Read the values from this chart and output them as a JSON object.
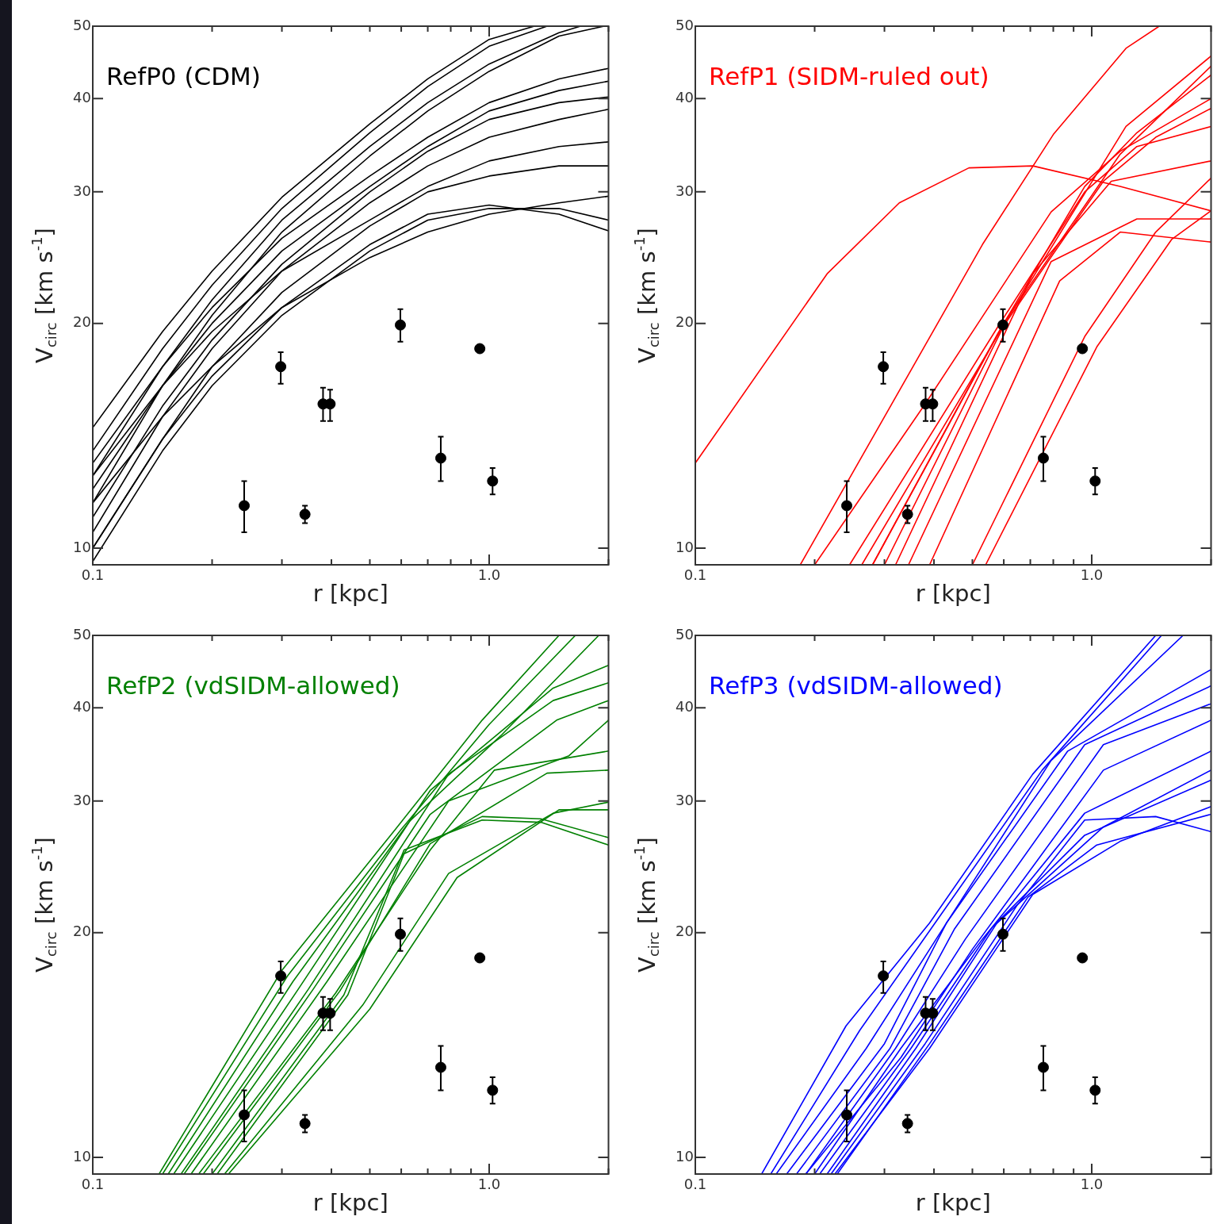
{
  "chart_data": [
    {
      "type": "line",
      "title": "RefP0 (CDM)",
      "xlabel": "r [kpc]",
      "ylabel": "V$_{circ}$ [km s$^{-1}$]",
      "log": "xy",
      "grid": false,
      "xlim": [
        0.1,
        2.0
      ],
      "ylim": [
        9.5,
        50
      ],
      "xticks": [
        {
          "value": 0.1,
          "label": "0.1"
        },
        {
          "value": 0.2,
          "label": null
        },
        {
          "value": 0.3,
          "label": null
        },
        {
          "value": 0.4,
          "label": null
        },
        {
          "value": 0.5,
          "label": null
        },
        {
          "value": 0.6,
          "label": null
        },
        {
          "value": 0.7,
          "label": null
        },
        {
          "value": 0.8,
          "label": null
        },
        {
          "value": 0.9,
          "label": null
        },
        {
          "value": 1,
          "label": "1.0"
        },
        {
          "value": 2,
          "label": null
        }
      ],
      "yticks": [
        10,
        20,
        30,
        40,
        50
      ],
      "series": [
        {
          "color": "#000000",
          "x": [
            0.1,
            0.15,
            0.2,
            0.3,
            0.5,
            0.7,
            1.0,
            1.3
          ],
          "values": [
            14.5,
            19.5,
            23.5,
            29.5,
            37,
            42.5,
            48,
            50
          ]
        },
        {
          "color": "#000000",
          "x": [
            0.1,
            0.15,
            0.2,
            0.3,
            0.5,
            0.7,
            1.0,
            1.4
          ],
          "values": [
            13.5,
            18.5,
            22.5,
            28.5,
            36,
            41.5,
            47,
            50
          ]
        },
        {
          "color": "#000000",
          "x": [
            0.1,
            0.15,
            0.2,
            0.3,
            0.5,
            0.7,
            1.0,
            1.5,
            1.7
          ],
          "values": [
            12.5,
            17.5,
            21.5,
            27.5,
            34.5,
            39.5,
            44.5,
            49,
            50
          ]
        },
        {
          "color": "#000000",
          "x": [
            0.1,
            0.15,
            0.2,
            0.3,
            0.5,
            0.7,
            1.0,
            1.5,
            1.95
          ],
          "values": [
            11.5,
            16.5,
            20.5,
            26.5,
            33.5,
            38.5,
            43.5,
            48.5,
            50
          ]
        },
        {
          "color": "#000000",
          "x": [
            0.1,
            0.15,
            0.2,
            0.3,
            0.5,
            0.7,
            1.0,
            1.5,
            2.0
          ],
          "values": [
            13,
            17.5,
            21,
            26,
            31.5,
            35.5,
            39.5,
            42.5,
            43.9
          ]
        },
        {
          "color": "#000000",
          "x": [
            0.1,
            0.15,
            0.2,
            0.3,
            0.5,
            0.7,
            1.0,
            1.5,
            2.0
          ],
          "values": [
            12,
            16.5,
            20,
            25,
            30.5,
            34.5,
            38.5,
            41,
            42.2
          ]
        },
        {
          "color": "#000000",
          "x": [
            0.1,
            0.15,
            0.2,
            0.3,
            0.5,
            0.7,
            1.0,
            1.5,
            2.0
          ],
          "values": [
            11,
            15.5,
            19,
            24,
            30,
            34,
            37.5,
            39.5,
            40.2
          ]
        },
        {
          "color": "#000000",
          "x": [
            0.1,
            0.15,
            0.2,
            0.3,
            0.5,
            0.7,
            1.0,
            1.5,
            2.0
          ],
          "values": [
            10.5,
            15,
            18.5,
            23.5,
            29,
            32.5,
            35.5,
            37.5,
            38.7
          ]
        },
        {
          "color": "#000000",
          "x": [
            0.1,
            0.15,
            0.2,
            0.3,
            0.5,
            0.7,
            1.0,
            1.5,
            2.0
          ],
          "values": [
            12.5,
            16.5,
            19.5,
            23.5,
            27.5,
            30.5,
            33,
            34.5,
            35.0
          ]
        },
        {
          "color": "#000000",
          "x": [
            0.1,
            0.15,
            0.2,
            0.3,
            0.5,
            0.7,
            1.0,
            1.5,
            2.0
          ],
          "values": [
            10,
            14,
            17.5,
            22,
            27,
            30,
            31.5,
            32.5,
            32.5
          ]
        },
        {
          "color": "#000000",
          "x": [
            0.1,
            0.15,
            0.2,
            0.3,
            0.5,
            0.7,
            1.0,
            1.5,
            2.0
          ],
          "values": [
            11.5,
            15,
            17.5,
            21,
            24.5,
            26.5,
            28,
            29,
            29.6
          ]
        },
        {
          "color": "#000000",
          "x": [
            0.1,
            0.15,
            0.2,
            0.3,
            0.5,
            0.7,
            1.0,
            1.5,
            2.0
          ],
          "values": [
            10,
            14,
            17,
            21,
            25.5,
            28,
            28.8,
            28,
            26.6
          ]
        },
        {
          "color": "#000000",
          "x": [
            0.1,
            0.15,
            0.2,
            0.3,
            0.5,
            0.7,
            1.0,
            1.5,
            2.0
          ],
          "values": [
            9.6,
            13.5,
            16.5,
            20.5,
            25,
            27.5,
            28.5,
            28.5,
            27.5
          ]
        },
        {
          "type": "scatter",
          "marker": "circle",
          "color": "#000000",
          "x": [
            0.241,
            0.298,
            0.343,
            0.381,
            0.397,
            0.597,
            0.755,
            0.947,
            1.02
          ],
          "values": [
            11.4,
            17.5,
            11.1,
            15.6,
            15.6,
            19.9,
            13.2,
            18.5,
            12.3
          ],
          "errors": [
            [
              10.5,
              12.3
            ],
            [
              16.6,
              18.3
            ],
            [
              10.8,
              11.4
            ],
            [
              14.8,
              16.4
            ],
            [
              14.8,
              16.3
            ],
            [
              18.9,
              20.9
            ],
            [
              12.3,
              14.1
            ],
            [
              18.3,
              18.7
            ],
            [
              11.8,
              12.8
            ]
          ]
        }
      ]
    },
    {
      "type": "line",
      "title": "RefP1 (SIDM-ruled out)",
      "xlabel": "r [kpc]",
      "ylabel": "V$_{circ}$ [km s$^{-1}$]",
      "log": "xy",
      "grid": false,
      "xlim": [
        0.1,
        2.0
      ],
      "ylim": [
        9.5,
        50
      ],
      "xticks": [
        {
          "value": 0.1,
          "label": "0.1"
        },
        {
          "value": 0.2,
          "label": null
        },
        {
          "value": 0.3,
          "label": null
        },
        {
          "value": 0.4,
          "label": null
        },
        {
          "value": 0.5,
          "label": null
        },
        {
          "value": 0.6,
          "label": null
        },
        {
          "value": 0.7,
          "label": null
        },
        {
          "value": 0.8,
          "label": null
        },
        {
          "value": 0.9,
          "label": null
        },
        {
          "value": 1,
          "label": "1.0"
        },
        {
          "value": 2,
          "label": null
        }
      ],
      "yticks": [
        10,
        20,
        30,
        40,
        50
      ],
      "series": [
        {
          "color": "#ff0000",
          "x": [
            0.1,
            0.215,
            0.327,
            0.49,
            0.71,
            1.18,
            2.0
          ],
          "values": [
            13,
            23.3,
            29,
            32.3,
            32.5,
            30.5,
            28.3
          ]
        },
        {
          "color": "#ff0000",
          "x": [
            0.184,
            0.53,
            0.8,
            1.22,
            1.48
          ],
          "values": [
            9.5,
            25.5,
            35.8,
            46.7,
            50
          ]
        },
        {
          "color": "#ff0000",
          "x": [
            0.2,
            0.38,
            0.79,
            1.18,
            2.0
          ],
          "values": [
            9.5,
            15.6,
            28.2,
            34,
            40
          ]
        },
        {
          "color": "#ff0000",
          "x": [
            0.245,
            0.58,
            0.96,
            1.3,
            2.0
          ],
          "values": [
            9.5,
            19.8,
            30,
            34.5,
            36.7
          ]
        },
        {
          "color": "#ff0000",
          "x": [
            0.263,
            0.59,
            1.07,
            1.45,
            2.0
          ],
          "values": [
            9.5,
            19.6,
            31,
            35.5,
            38.8
          ]
        },
        {
          "color": "#ff0000",
          "x": [
            0.28,
            0.6,
            1.18,
            2.0
          ],
          "values": [
            9.5,
            20,
            33.7,
            44.2
          ]
        },
        {
          "color": "#ff0000",
          "x": [
            0.3,
            0.61,
            1.22,
            2.0
          ],
          "values": [
            9.5,
            20.2,
            36.7,
            45.6
          ]
        },
        {
          "color": "#ff0000",
          "x": [
            0.32,
            0.71,
            1.12,
            2.0
          ],
          "values": [
            9.5,
            23.3,
            31,
            33
          ]
        },
        {
          "color": "#ff0000",
          "x": [
            0.345,
            0.79,
            1.3,
            2.0
          ],
          "values": [
            9.5,
            24.2,
            27.6,
            27.6
          ]
        },
        {
          "color": "#ff0000",
          "x": [
            0.39,
            0.83,
            1.18,
            2.0
          ],
          "values": [
            9.5,
            22.8,
            26.5,
            25.7
          ]
        },
        {
          "color": "#ff0000",
          "x": [
            0.5,
            0.96,
            1.45,
            2.0
          ],
          "values": [
            9.5,
            19.2,
            26.5,
            31.3
          ]
        },
        {
          "color": "#ff0000",
          "x": [
            0.54,
            1.03,
            1.59,
            2.0
          ],
          "values": [
            9.5,
            18.6,
            25.9,
            28.3
          ]
        },
        {
          "color": "#ff0000",
          "x": [
            0.28,
            0.58,
            0.96,
            1.3,
            2.0
          ],
          "values": [
            9.5,
            19.4,
            30.5,
            36,
            43
          ]
        },
        {
          "type": "scatter",
          "marker": "circle",
          "color": "#000000",
          "x": [
            0.241,
            0.298,
            0.343,
            0.381,
            0.397,
            0.597,
            0.755,
            0.947,
            1.02
          ],
          "values": [
            11.4,
            17.5,
            11.1,
            15.6,
            15.6,
            19.9,
            13.2,
            18.5,
            12.3
          ],
          "errors": [
            [
              10.5,
              12.3
            ],
            [
              16.6,
              18.3
            ],
            [
              10.8,
              11.4
            ],
            [
              14.8,
              16.4
            ],
            [
              14.8,
              16.3
            ],
            [
              18.9,
              20.9
            ],
            [
              12.3,
              14.1
            ],
            [
              18.3,
              18.7
            ],
            [
              11.8,
              12.8
            ]
          ]
        }
      ]
    },
    {
      "type": "line",
      "title": "RefP2 (vdSIDM-allowed)",
      "xlabel": "r [kpc]",
      "ylabel": "V$_{circ}$ [km s$^{-1}$]",
      "log": "xy",
      "grid": false,
      "xlim": [
        0.1,
        2.0
      ],
      "ylim": [
        9.5,
        50
      ],
      "xticks": [
        {
          "value": 0.1,
          "label": "0.1"
        },
        {
          "value": 0.2,
          "label": null
        },
        {
          "value": 0.3,
          "label": null
        },
        {
          "value": 0.4,
          "label": null
        },
        {
          "value": 0.5,
          "label": null
        },
        {
          "value": 0.6,
          "label": null
        },
        {
          "value": 0.7,
          "label": null
        },
        {
          "value": 0.8,
          "label": null
        },
        {
          "value": 0.9,
          "label": null
        },
        {
          "value": 1,
          "label": "1.0"
        },
        {
          "value": 2,
          "label": null
        }
      ],
      "yticks": [
        10,
        20,
        30,
        40,
        50
      ],
      "series": [
        {
          "color": "#008000",
          "x": [
            0.147,
            0.3,
            0.58,
            0.96,
            1.5
          ],
          "values": [
            9.5,
            17.8,
            27.5,
            38.5,
            50
          ]
        },
        {
          "color": "#008000",
          "x": [
            0.15,
            0.31,
            0.6,
            1.0,
            1.65
          ],
          "values": [
            9.5,
            17.5,
            27.5,
            38,
            50
          ]
        },
        {
          "color": "#008000",
          "x": [
            0.155,
            0.32,
            0.63,
            1.07,
            1.89
          ],
          "values": [
            9.5,
            17.2,
            28.2,
            36.7,
            50
          ]
        },
        {
          "color": "#008000",
          "x": [
            0.16,
            0.33,
            0.71,
            1.45,
            2.0
          ],
          "values": [
            9.5,
            16.8,
            31,
            42.5,
            45.6
          ]
        },
        {
          "color": "#008000",
          "x": [
            0.167,
            0.35,
            0.79,
            1.45,
            2.0
          ],
          "values": [
            9.5,
            16.8,
            32.6,
            40.9,
            43.2
          ]
        },
        {
          "color": "#008000",
          "x": [
            0.17,
            0.36,
            0.71,
            1.48,
            2.0
          ],
          "values": [
            9.5,
            16.8,
            28.8,
            38.5,
            40.9
          ]
        },
        {
          "color": "#008000",
          "x": [
            0.177,
            0.39,
            0.79,
            1.59,
            2.0
          ],
          "values": [
            9.5,
            17.2,
            30,
            34.5,
            38.5
          ]
        },
        {
          "color": "#008000",
          "x": [
            0.185,
            0.41,
            0.71,
            1.03,
            2.0
          ],
          "values": [
            9.5,
            16.6,
            25.8,
            33,
            35
          ]
        },
        {
          "color": "#008000",
          "x": [
            0.19,
            0.42,
            0.71,
            1.4,
            2.0
          ],
          "values": [
            9.5,
            16.7,
            26.3,
            32.7,
            33
          ]
        },
        {
          "color": "#008000",
          "x": [
            0.2,
            0.43,
            0.61,
            0.96,
            1.35,
            2.0
          ],
          "values": [
            9.5,
            16.5,
            25.8,
            28.3,
            28.1,
            26.2
          ]
        },
        {
          "color": "#008000",
          "x": [
            0.206,
            0.44,
            0.61,
            0.96,
            1.35,
            2.0
          ],
          "values": [
            9.5,
            16.5,
            25.5,
            28.6,
            28.4,
            26.8
          ]
        },
        {
          "color": "#008000",
          "x": [
            0.215,
            0.48,
            0.79,
            1.45,
            2.0
          ],
          "values": [
            9.5,
            16,
            24,
            28.9,
            29.9
          ]
        },
        {
          "color": "#008000",
          "x": [
            0.22,
            0.5,
            0.83,
            1.5,
            2.0
          ],
          "values": [
            9.5,
            15.8,
            23.7,
            29.2,
            29.2
          ]
        },
        {
          "type": "scatter",
          "marker": "circle",
          "color": "#000000",
          "x": [
            0.241,
            0.298,
            0.343,
            0.381,
            0.397,
            0.597,
            0.755,
            0.947,
            1.02
          ],
          "values": [
            11.4,
            17.5,
            11.1,
            15.6,
            15.6,
            19.9,
            13.2,
            18.5,
            12.3
          ],
          "errors": [
            [
              10.5,
              12.3
            ],
            [
              16.6,
              18.3
            ],
            [
              10.8,
              11.4
            ],
            [
              14.8,
              16.4
            ],
            [
              14.8,
              16.3
            ],
            [
              18.9,
              20.9
            ],
            [
              12.3,
              14.1
            ],
            [
              18.3,
              18.7
            ],
            [
              11.8,
              12.8
            ]
          ]
        }
      ]
    },
    {
      "type": "line",
      "title": "RefP3 (vdSIDM-allowed)",
      "xlabel": "r [kpc]",
      "ylabel": "V$_{circ}$ [km s$^{-1}$]",
      "log": "xy",
      "grid": false,
      "xlim": [
        0.1,
        2.0
      ],
      "ylim": [
        9.5,
        50
      ],
      "xticks": [
        {
          "value": 0.1,
          "label": "0.1"
        },
        {
          "value": 0.2,
          "label": null
        },
        {
          "value": 0.3,
          "label": null
        },
        {
          "value": 0.4,
          "label": null
        },
        {
          "value": 0.5,
          "label": null
        },
        {
          "value": 0.6,
          "label": null
        },
        {
          "value": 0.7,
          "label": null
        },
        {
          "value": 0.8,
          "label": null
        },
        {
          "value": 0.9,
          "label": null
        },
        {
          "value": 1,
          "label": "1.0"
        },
        {
          "value": 2,
          "label": null
        }
      ],
      "yticks": [
        10,
        20,
        30,
        40,
        50
      ],
      "series": [
        {
          "color": "#0000ff",
          "x": [
            0.147,
            0.24,
            0.39,
            0.71,
            1.45
          ],
          "values": [
            9.5,
            15,
            20.6,
            32.6,
            50
          ]
        },
        {
          "color": "#0000ff",
          "x": [
            0.155,
            0.26,
            0.4,
            0.75,
            1.5
          ],
          "values": [
            9.5,
            14.8,
            20.5,
            33,
            50
          ]
        },
        {
          "color": "#0000ff",
          "x": [
            0.16,
            0.27,
            0.42,
            0.79,
            1.7
          ],
          "values": [
            9.5,
            14,
            20.2,
            34,
            50
          ]
        },
        {
          "color": "#0000ff",
          "x": [
            0.17,
            0.3,
            0.43,
            0.87,
            2.0
          ],
          "values": [
            9.5,
            14.2,
            20.6,
            35,
            45
          ]
        },
        {
          "color": "#0000ff",
          "x": [
            0.18,
            0.31,
            0.45,
            0.96,
            2.0
          ],
          "values": [
            9.5,
            14,
            20.2,
            35.7,
            42.8
          ]
        },
        {
          "color": "#0000ff",
          "x": [
            0.19,
            0.32,
            0.48,
            1.07,
            2.0
          ],
          "values": [
            9.5,
            14,
            19.6,
            35.7,
            40.5
          ]
        },
        {
          "color": "#0000ff",
          "x": [
            0.19,
            0.33,
            0.5,
            1.07,
            2.0
          ],
          "values": [
            9.5,
            13.6,
            19,
            33,
            38.5
          ]
        },
        {
          "color": "#0000ff",
          "x": [
            0.2,
            0.33,
            0.53,
            0.96,
            2.0
          ],
          "values": [
            9.5,
            14,
            19.6,
            28.9,
            35
          ]
        },
        {
          "color": "#0000ff",
          "x": [
            0.206,
            0.35,
            0.56,
            1.07,
            2.0
          ],
          "values": [
            9.5,
            14,
            20.3,
            27.7,
            33
          ]
        },
        {
          "color": "#0000ff",
          "x": [
            0.215,
            0.36,
            0.58,
            0.96,
            2.0
          ],
          "values": [
            9.5,
            14,
            20.7,
            27,
            32
          ]
        },
        {
          "color": "#0000ff",
          "x": [
            0.22,
            0.38,
            0.65,
            0.96,
            1.45,
            2.0
          ],
          "values": [
            9.5,
            14.2,
            21.8,
            28.3,
            28.6,
            27.3
          ]
        },
        {
          "color": "#0000ff",
          "x": [
            0.228,
            0.39,
            0.69,
            1.03,
            2.0
          ],
          "values": [
            9.5,
            14.2,
            22.3,
            26.2,
            28.8
          ]
        },
        {
          "color": "#0000ff",
          "x": [
            0.225,
            0.39,
            0.71,
            1.18,
            2.0
          ],
          "values": [
            9.5,
            14,
            22.5,
            26.5,
            29.5
          ]
        },
        {
          "type": "scatter",
          "marker": "circle",
          "color": "#000000",
          "x": [
            0.241,
            0.298,
            0.343,
            0.381,
            0.397,
            0.597,
            0.755,
            0.947,
            1.02
          ],
          "values": [
            11.4,
            17.5,
            11.1,
            15.6,
            15.6,
            19.9,
            13.2,
            18.5,
            12.3
          ],
          "errors": [
            [
              10.5,
              12.3
            ],
            [
              16.6,
              18.3
            ],
            [
              10.8,
              11.4
            ],
            [
              14.8,
              16.4
            ],
            [
              14.8,
              16.3
            ],
            [
              18.9,
              20.9
            ],
            [
              12.3,
              14.1
            ],
            [
              18.3,
              18.7
            ],
            [
              11.8,
              12.8
            ]
          ]
        }
      ]
    }
  ]
}
